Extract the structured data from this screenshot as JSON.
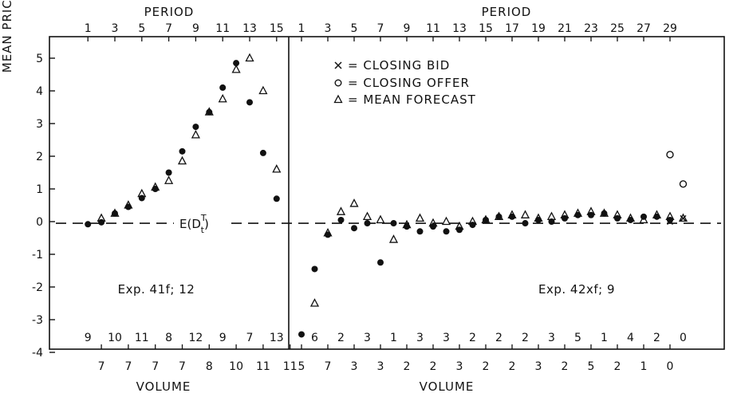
{
  "chart_data": {
    "type": "scatter",
    "y_label": "MEAN PRICE",
    "y_ticks": [
      "5",
      "4",
      "3",
      "2",
      "1",
      "0",
      "-1",
      "-2",
      "-3",
      "-4"
    ],
    "ylim": [
      -4,
      5.5
    ],
    "legend": [
      {
        "symbol": "×",
        "label": "= CLOSING BID"
      },
      {
        "symbol": "o",
        "label": "= CLOSING OFFER"
      },
      {
        "symbol": "Δ",
        "label": "= MEAN FORECAST"
      }
    ],
    "reference_line": {
      "label": "E(D",
      "sup": "T",
      "sub": "t",
      "close": ")",
      "y": -0.05
    },
    "panels": [
      {
        "name": "Exp. 41f; 12",
        "period_label": "PERIOD",
        "volume_label": "VOLUME",
        "period_ticks": [
          "1",
          "3",
          "5",
          "7",
          "9",
          "11",
          "13",
          "15"
        ],
        "volume_top": [
          "9",
          "10",
          "11",
          "8",
          "12",
          "9",
          "7",
          "13"
        ],
        "volume_bottom": [
          "7",
          "7",
          "7",
          "7",
          "8",
          "10",
          "11",
          "11"
        ],
        "filled_dots": [
          [
            1,
            -0.08
          ],
          [
            2,
            -0.02
          ],
          [
            3,
            0.25
          ],
          [
            4,
            0.45
          ],
          [
            5,
            0.72
          ],
          [
            6,
            1.0
          ],
          [
            7,
            1.5
          ],
          [
            8,
            2.15
          ],
          [
            9,
            2.9
          ],
          [
            10,
            3.35
          ],
          [
            11,
            4.1
          ],
          [
            12,
            4.85
          ],
          [
            13,
            3.65
          ],
          [
            14,
            2.1
          ],
          [
            15,
            0.7
          ]
        ],
        "forecast_triangles": [
          [
            2,
            0.1
          ],
          [
            3,
            0.25
          ],
          [
            4,
            0.5
          ],
          [
            5,
            0.85
          ],
          [
            6,
            1.05
          ],
          [
            7,
            1.25
          ],
          [
            8,
            1.85
          ],
          [
            9,
            2.65
          ],
          [
            10,
            3.35
          ],
          [
            11,
            3.75
          ],
          [
            12,
            4.65
          ],
          [
            13,
            5.0
          ],
          [
            14,
            4.0
          ],
          [
            15,
            1.6
          ]
        ]
      },
      {
        "name": "Exp. 42xf; 9",
        "period_label": "PERIOD",
        "volume_label": "VOLUME",
        "period_ticks": [
          "1",
          "3",
          "5",
          "7",
          "9",
          "11",
          "13",
          "15",
          "17",
          "19",
          "21",
          "23",
          "25",
          "27",
          "29"
        ],
        "volume_top": [
          "6",
          "2",
          "3",
          "1",
          "3",
          "3",
          "2",
          "2",
          "2",
          "3",
          "5",
          "1",
          "4",
          "2",
          "0"
        ],
        "volume_bottom": [
          "5",
          "7",
          "3",
          "3",
          "2",
          "2",
          "3",
          "2",
          "2",
          "3",
          "2",
          "5",
          "2",
          "1",
          "0"
        ],
        "filled_dots": [
          [
            1,
            -3.45
          ],
          [
            2,
            -1.45
          ],
          [
            3,
            -0.4
          ],
          [
            4,
            0.05
          ],
          [
            5,
            -0.2
          ],
          [
            6,
            -0.05
          ],
          [
            7,
            -1.25
          ],
          [
            8,
            -0.05
          ],
          [
            9,
            -0.15
          ],
          [
            10,
            -0.3
          ],
          [
            11,
            -0.15
          ],
          [
            12,
            -0.3
          ],
          [
            13,
            -0.25
          ],
          [
            14,
            -0.1
          ],
          [
            15,
            0.05
          ],
          [
            16,
            0.15
          ],
          [
            17,
            0.15
          ],
          [
            18,
            -0.05
          ],
          [
            19,
            0.05
          ],
          [
            20,
            0.0
          ],
          [
            21,
            0.1
          ],
          [
            22,
            0.2
          ],
          [
            23,
            0.2
          ],
          [
            24,
            0.25
          ],
          [
            25,
            0.1
          ],
          [
            26,
            0.05
          ],
          [
            27,
            0.15
          ],
          [
            28,
            0.15
          ],
          [
            29,
            0.05
          ]
        ],
        "forecast_triangles": [
          [
            2,
            -2.5
          ],
          [
            3,
            -0.35
          ],
          [
            4,
            0.3
          ],
          [
            5,
            0.55
          ],
          [
            6,
            0.15
          ],
          [
            7,
            0.05
          ],
          [
            8,
            -0.55
          ],
          [
            9,
            -0.1
          ],
          [
            10,
            0.1
          ],
          [
            11,
            -0.05
          ],
          [
            12,
            0.0
          ],
          [
            13,
            -0.15
          ],
          [
            14,
            0.0
          ],
          [
            15,
            0.05
          ],
          [
            16,
            0.15
          ],
          [
            17,
            0.2
          ],
          [
            18,
            0.2
          ],
          [
            19,
            0.1
          ],
          [
            20,
            0.15
          ],
          [
            21,
            0.2
          ],
          [
            22,
            0.25
          ],
          [
            23,
            0.3
          ],
          [
            24,
            0.25
          ],
          [
            25,
            0.2
          ],
          [
            26,
            0.1
          ],
          [
            27,
            0.05
          ],
          [
            28,
            0.2
          ],
          [
            29,
            0.15
          ],
          [
            30,
            0.1
          ]
        ],
        "closing_offers": [
          [
            29,
            2.05
          ],
          [
            30,
            1.15
          ]
        ],
        "closing_bids": [
          [
            29,
            0.0
          ],
          [
            30,
            0.1
          ]
        ]
      }
    ]
  }
}
